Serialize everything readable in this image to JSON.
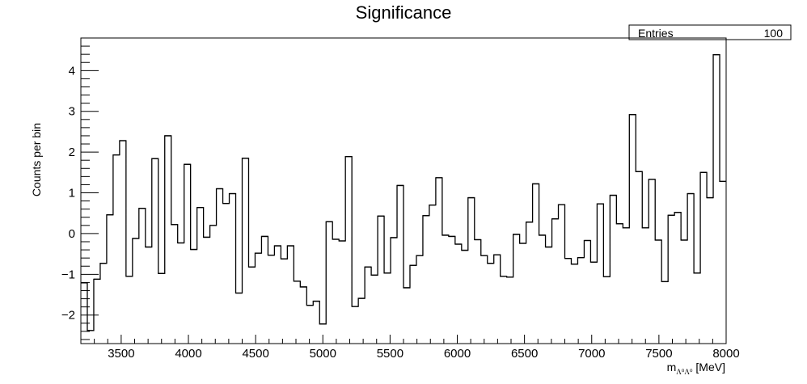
{
  "chart_data": {
    "type": "line",
    "title": "Significance",
    "xlabel_main": "m",
    "xlabel_sub": "Λ⁰Λ⁰",
    "xlabel_unit": " [MeV]",
    "ylabel": "Counts per bin",
    "stats": {
      "label": "Entries",
      "value": "100"
    },
    "xlim": [
      3200,
      8000
    ],
    "ylim": [
      -2.7,
      4.8
    ],
    "x_ticks": [
      3500,
      4000,
      4500,
      5000,
      5500,
      6000,
      6500,
      7000,
      7500,
      8000
    ],
    "y_ticks": [
      -2,
      -1,
      0,
      1,
      2,
      3,
      4
    ],
    "bin_width": 48,
    "values": [
      -1.21,
      -2.38,
      -1.12,
      -0.73,
      0.46,
      1.93,
      2.28,
      -1.05,
      -0.12,
      0.62,
      -0.33,
      1.84,
      -0.98,
      2.4,
      0.22,
      -0.23,
      1.7,
      -0.39,
      0.64,
      -0.09,
      0.2,
      1.1,
      0.74,
      0.98,
      -1.46,
      1.85,
      -0.82,
      -0.48,
      -0.07,
      -0.53,
      -0.3,
      -0.62,
      -0.3,
      -1.17,
      -1.31,
      -1.76,
      -1.66,
      -2.22,
      0.29,
      -0.14,
      -0.18,
      1.89,
      -1.79,
      -1.59,
      -0.82,
      -1.02,
      0.43,
      -0.97,
      -0.1,
      1.18,
      -1.33,
      -0.78,
      -0.54,
      0.44,
      0.7,
      1.37,
      -0.04,
      -0.07,
      -0.26,
      -0.41,
      0.88,
      -0.15,
      -0.54,
      -0.73,
      -0.52,
      -1.05,
      -1.07,
      -0.02,
      -0.24,
      0.28,
      1.22,
      -0.04,
      -0.33,
      0.36,
      0.71,
      -0.61,
      -0.75,
      -0.59,
      -0.17,
      -0.7,
      0.73,
      -1.06,
      0.94,
      0.24,
      0.14,
      2.92,
      1.52,
      0.14,
      1.33,
      -0.16,
      -1.18,
      0.45,
      0.52,
      -0.16,
      0.98,
      -0.97,
      1.5,
      0.88,
      4.39,
      1.28
    ]
  }
}
